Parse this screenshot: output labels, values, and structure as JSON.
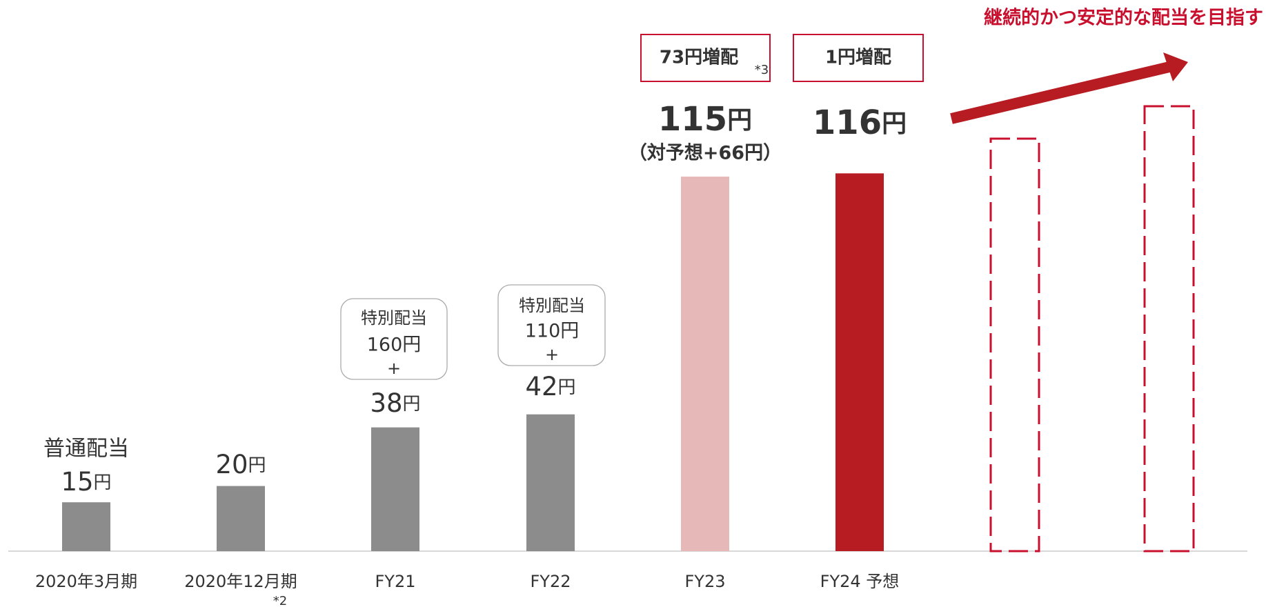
{
  "chart_data": {
    "type": "bar",
    "categories": [
      "2020年3月期",
      "2020年12月期",
      "FY21",
      "FY22",
      "FY23",
      "FY24 予想"
    ],
    "values": [
      15,
      20,
      38,
      42,
      115,
      116
    ],
    "value_labels": [
      "15円",
      "20円",
      "38円",
      "42円",
      "115円",
      "116円"
    ],
    "colors": [
      "#8c8c8c",
      "#8c8c8c",
      "#8c8c8c",
      "#8c8c8c",
      "#e6b8b8",
      "#b71c23"
    ],
    "ylim": [
      0,
      165
    ],
    "annotations": {
      "ordinary": "普通配当",
      "special": [
        {
          "label": "特別配当",
          "amount": "160円",
          "plus": "+"
        },
        {
          "label": "特別配当",
          "amount": "110円",
          "plus": "+"
        }
      ],
      "increases": [
        "73円増配",
        "1円増配"
      ],
      "increase_note": "*3",
      "forecast_diff": "（対予想+66円）",
      "footnote": "*2",
      "goal": "継続的かつ安定的な配当を目指す"
    }
  }
}
